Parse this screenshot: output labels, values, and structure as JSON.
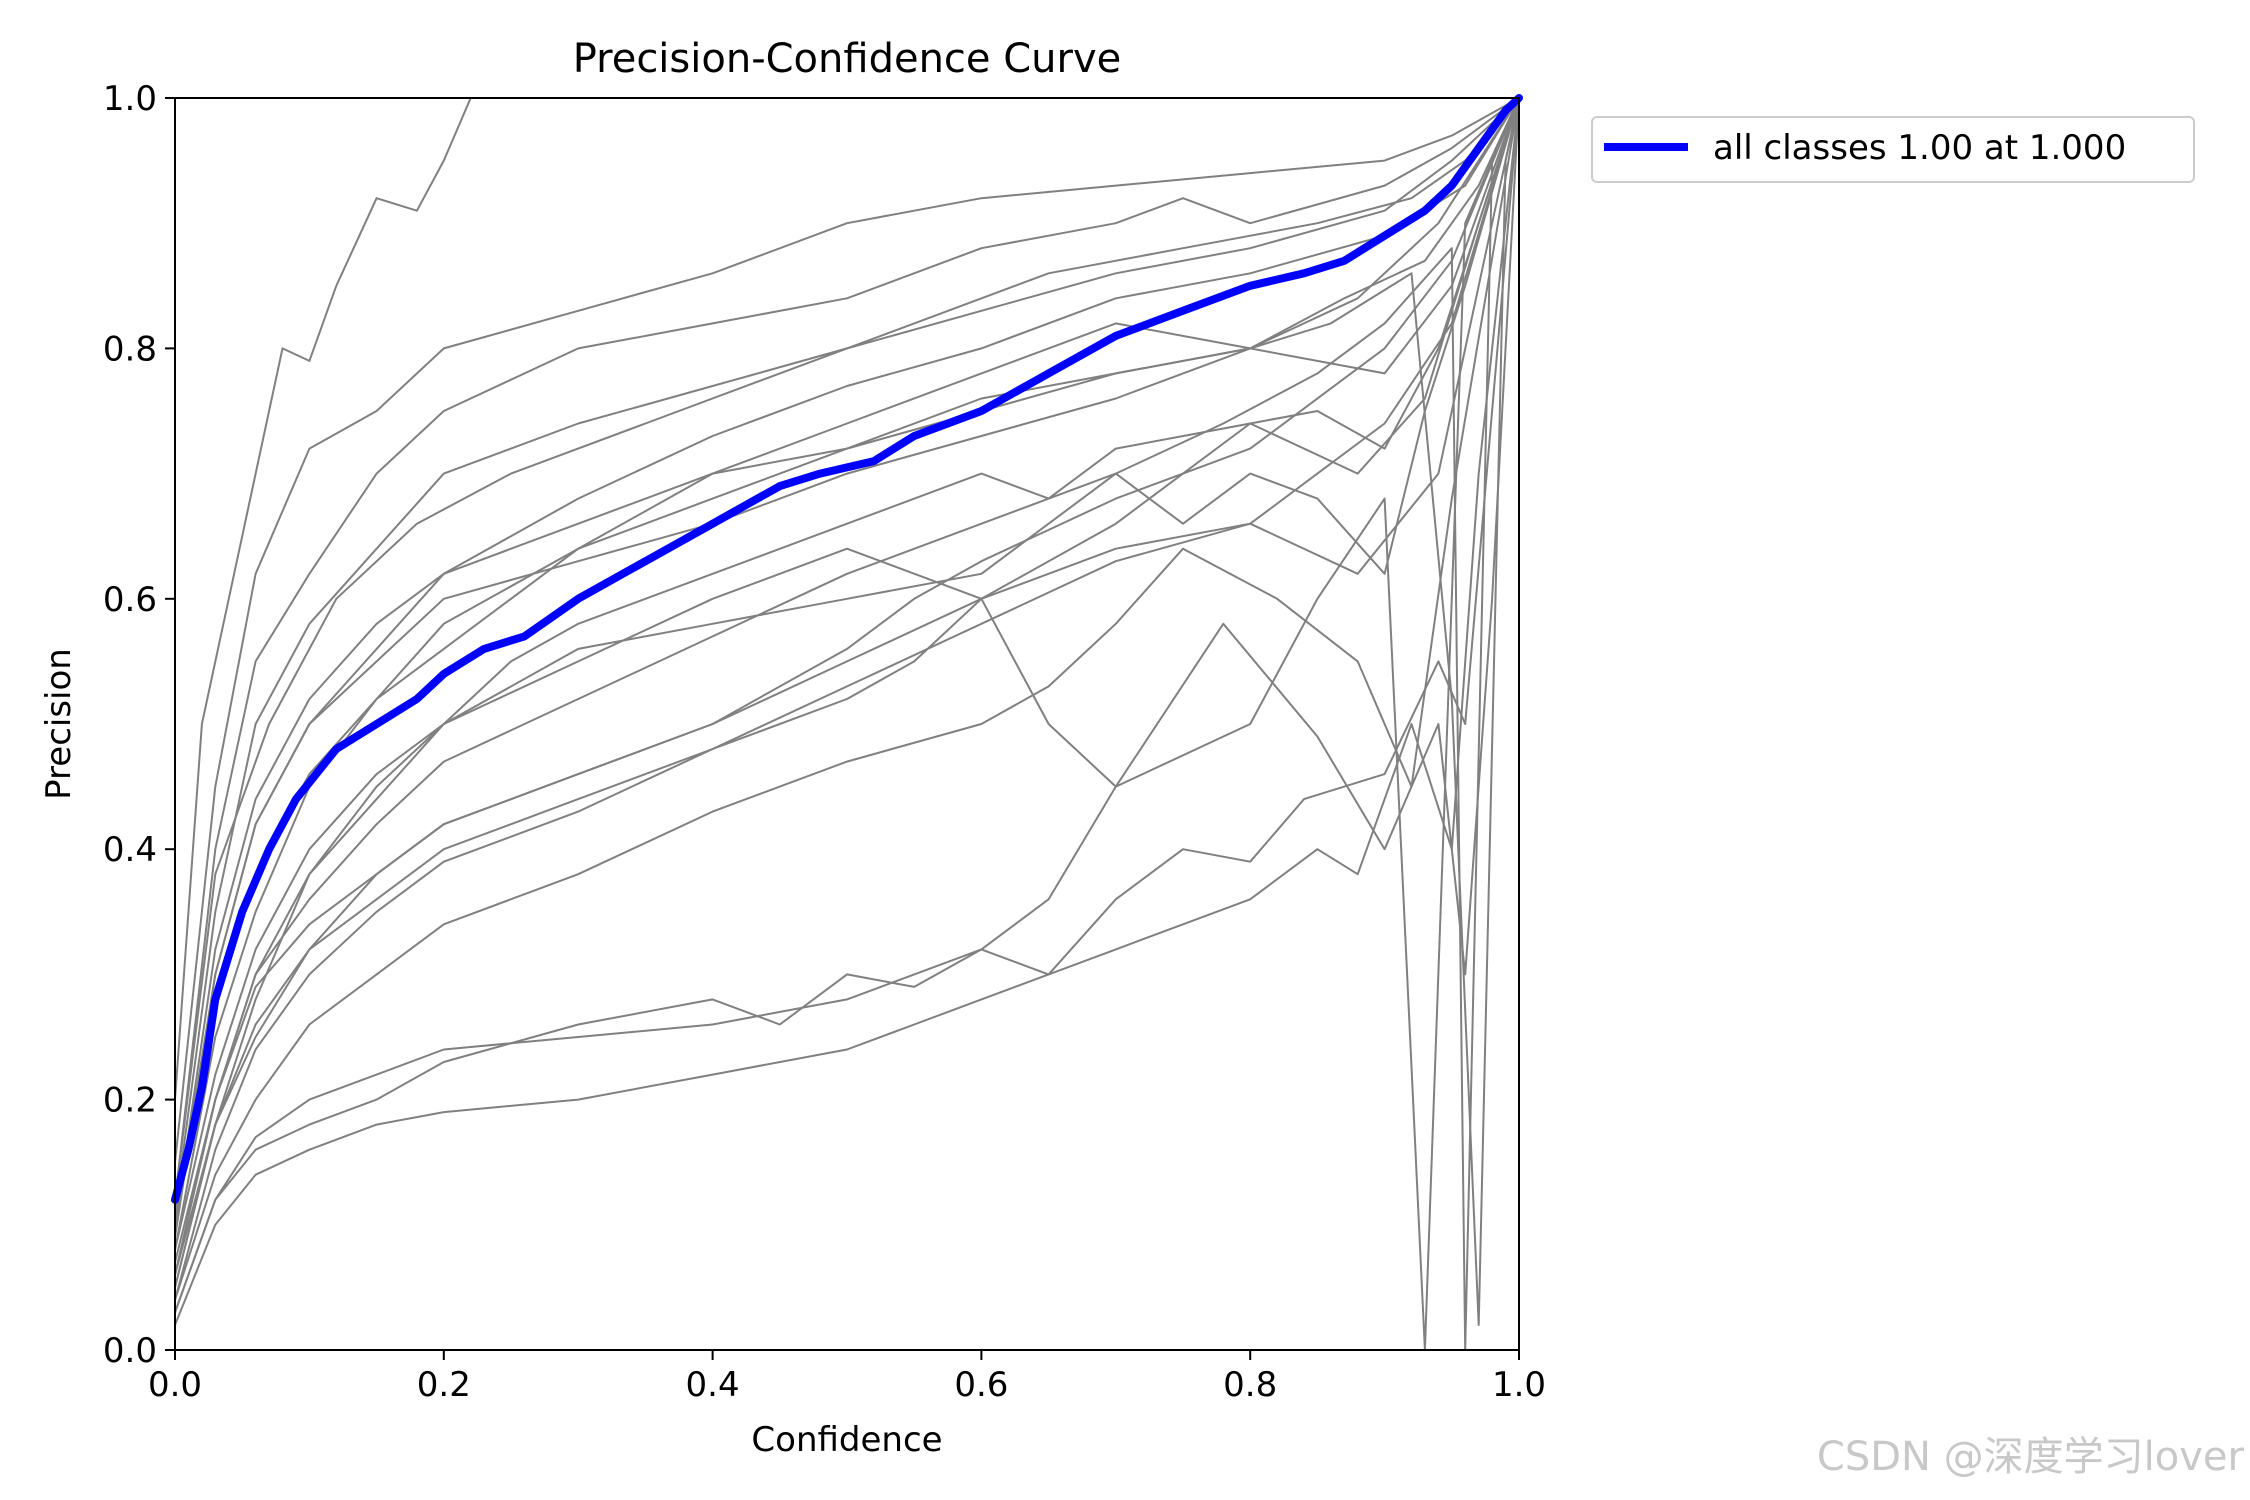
{
  "chart_data": {
    "type": "line",
    "title": "Precision-Confidence Curve",
    "xlabel": "Confidence",
    "ylabel": "Precision",
    "xlim": [
      0.0,
      1.0
    ],
    "ylim": [
      0.0,
      1.0
    ],
    "xticks": [
      "0.0",
      "0.2",
      "0.4",
      "0.6",
      "0.8",
      "1.0"
    ],
    "yticks": [
      "0.0",
      "0.2",
      "0.4",
      "0.6",
      "0.8",
      "1.0"
    ],
    "grid": false,
    "legend_position": "outside-top-right",
    "colors": {
      "class_lines": "#808080",
      "all_classes": "#0000ff"
    },
    "series": [
      {
        "name": "all classes 1.00 at 1.000",
        "x": [
          0.0,
          0.01,
          0.02,
          0.03,
          0.05,
          0.07,
          0.09,
          0.12,
          0.15,
          0.18,
          0.2,
          0.23,
          0.26,
          0.3,
          0.35,
          0.4,
          0.45,
          0.48,
          0.52,
          0.55,
          0.6,
          0.65,
          0.7,
          0.75,
          0.8,
          0.84,
          0.87,
          0.9,
          0.93,
          0.95,
          0.97,
          0.99,
          1.0
        ],
        "y": [
          0.12,
          0.16,
          0.21,
          0.28,
          0.35,
          0.4,
          0.44,
          0.48,
          0.5,
          0.52,
          0.54,
          0.56,
          0.57,
          0.6,
          0.63,
          0.66,
          0.69,
          0.7,
          0.71,
          0.73,
          0.75,
          0.78,
          0.81,
          0.83,
          0.85,
          0.86,
          0.87,
          0.89,
          0.91,
          0.93,
          0.96,
          0.99,
          1.0
        ]
      }
    ],
    "class_series": [
      {
        "x": [
          0.0,
          0.02,
          0.05,
          0.08,
          0.1,
          0.12,
          0.15,
          0.18,
          0.2,
          0.22
        ],
        "y": [
          0.2,
          0.5,
          0.65,
          0.8,
          0.79,
          0.85,
          0.92,
          0.91,
          0.95,
          1.0
        ]
      },
      {
        "x": [
          0.0,
          0.03,
          0.06,
          0.1,
          0.15,
          0.2,
          0.3,
          0.4,
          0.5,
          0.6,
          0.7,
          0.8,
          0.9,
          0.95,
          1.0
        ],
        "y": [
          0.15,
          0.45,
          0.62,
          0.72,
          0.75,
          0.8,
          0.83,
          0.86,
          0.9,
          0.92,
          0.93,
          0.94,
          0.95,
          0.97,
          1.0
        ]
      },
      {
        "x": [
          0.0,
          0.03,
          0.07,
          0.12,
          0.18,
          0.25,
          0.35,
          0.45,
          0.55,
          0.65,
          0.75,
          0.85,
          0.92,
          0.96,
          1.0
        ],
        "y": [
          0.12,
          0.38,
          0.5,
          0.6,
          0.66,
          0.7,
          0.74,
          0.78,
          0.82,
          0.86,
          0.88,
          0.9,
          0.92,
          0.95,
          1.0
        ]
      },
      {
        "x": [
          0.0,
          0.03,
          0.06,
          0.1,
          0.15,
          0.2,
          0.3,
          0.4,
          0.5,
          0.6,
          0.7,
          0.8,
          0.9,
          0.96,
          1.0
        ],
        "y": [
          0.1,
          0.3,
          0.42,
          0.5,
          0.56,
          0.62,
          0.68,
          0.73,
          0.77,
          0.8,
          0.84,
          0.86,
          0.89,
          0.93,
          1.0
        ]
      },
      {
        "x": [
          0.0,
          0.03,
          0.06,
          0.1,
          0.15,
          0.2,
          0.3,
          0.4,
          0.5,
          0.6,
          0.7,
          0.8,
          0.88,
          0.94,
          1.0
        ],
        "y": [
          0.08,
          0.25,
          0.35,
          0.45,
          0.52,
          0.58,
          0.64,
          0.7,
          0.74,
          0.78,
          0.82,
          0.8,
          0.84,
          0.9,
          1.0
        ]
      },
      {
        "x": [
          0.0,
          0.03,
          0.06,
          0.1,
          0.15,
          0.2,
          0.25,
          0.3,
          0.4,
          0.5,
          0.6,
          0.7,
          0.8,
          0.9,
          0.95,
          1.0
        ],
        "y": [
          0.1,
          0.28,
          0.38,
          0.46,
          0.52,
          0.56,
          0.6,
          0.64,
          0.68,
          0.72,
          0.75,
          0.78,
          0.8,
          0.78,
          0.85,
          1.0
        ]
      },
      {
        "x": [
          0.0,
          0.03,
          0.06,
          0.1,
          0.15,
          0.2,
          0.25,
          0.3,
          0.4,
          0.5,
          0.6,
          0.65,
          0.7,
          0.8,
          0.88,
          0.93,
          0.97,
          1.0
        ],
        "y": [
          0.06,
          0.2,
          0.3,
          0.38,
          0.44,
          0.5,
          0.55,
          0.58,
          0.62,
          0.66,
          0.7,
          0.68,
          0.72,
          0.74,
          0.7,
          0.76,
          0.9,
          1.0
        ]
      },
      {
        "x": [
          0.0,
          0.03,
          0.06,
          0.1,
          0.15,
          0.2,
          0.3,
          0.4,
          0.5,
          0.6,
          0.7,
          0.75,
          0.8,
          0.85,
          0.9,
          0.94,
          1.0
        ],
        "y": [
          0.05,
          0.18,
          0.26,
          0.32,
          0.38,
          0.42,
          0.46,
          0.5,
          0.55,
          0.6,
          0.66,
          0.7,
          0.74,
          0.75,
          0.72,
          0.8,
          1.0
        ]
      },
      {
        "x": [
          0.0,
          0.03,
          0.06,
          0.1,
          0.15,
          0.2,
          0.3,
          0.4,
          0.5,
          0.55,
          0.6,
          0.7,
          0.8,
          0.88,
          0.94,
          1.0
        ],
        "y": [
          0.04,
          0.16,
          0.24,
          0.3,
          0.35,
          0.39,
          0.43,
          0.48,
          0.52,
          0.55,
          0.6,
          0.64,
          0.66,
          0.62,
          0.7,
          1.0
        ]
      },
      {
        "x": [
          0.0,
          0.03,
          0.06,
          0.1,
          0.15,
          0.2,
          0.3,
          0.4,
          0.5,
          0.6,
          0.65,
          0.7,
          0.75,
          0.82,
          0.88,
          0.92,
          0.95,
          1.0
        ],
        "y": [
          0.04,
          0.14,
          0.2,
          0.26,
          0.3,
          0.34,
          0.38,
          0.43,
          0.47,
          0.5,
          0.53,
          0.58,
          0.64,
          0.6,
          0.55,
          0.45,
          0.68,
          1.0
        ]
      },
      {
        "x": [
          0.0,
          0.03,
          0.06,
          0.1,
          0.15,
          0.2,
          0.3,
          0.4,
          0.5,
          0.6,
          0.65,
          0.7,
          0.78,
          0.85,
          0.9,
          0.94,
          0.96,
          0.98,
          1.0
        ],
        "y": [
          0.03,
          0.12,
          0.17,
          0.2,
          0.22,
          0.24,
          0.25,
          0.26,
          0.28,
          0.32,
          0.36,
          0.45,
          0.58,
          0.49,
          0.4,
          0.5,
          0.3,
          0.6,
          1.0
        ]
      },
      {
        "x": [
          0.0,
          0.03,
          0.06,
          0.1,
          0.15,
          0.2,
          0.3,
          0.4,
          0.5,
          0.55,
          0.6,
          0.65,
          0.7,
          0.75,
          0.8,
          0.85,
          0.88,
          0.92,
          0.95,
          0.97,
          1.0
        ],
        "y": [
          0.02,
          0.1,
          0.14,
          0.16,
          0.18,
          0.19,
          0.2,
          0.22,
          0.24,
          0.26,
          0.28,
          0.3,
          0.32,
          0.34,
          0.36,
          0.4,
          0.38,
          0.5,
          0.4,
          0.7,
          1.0
        ]
      },
      {
        "x": [
          0.0,
          0.03,
          0.06,
          0.1,
          0.15,
          0.2,
          0.3,
          0.4,
          0.45,
          0.5,
          0.55,
          0.6,
          0.65,
          0.7,
          0.75,
          0.8,
          0.84,
          0.9,
          0.94,
          0.96,
          1.0
        ],
        "y": [
          0.03,
          0.12,
          0.16,
          0.18,
          0.2,
          0.23,
          0.26,
          0.28,
          0.26,
          0.3,
          0.29,
          0.32,
          0.3,
          0.36,
          0.4,
          0.39,
          0.44,
          0.46,
          0.55,
          0.5,
          1.0
        ]
      },
      {
        "x": [
          0.0,
          0.03,
          0.06,
          0.1,
          0.15,
          0.2,
          0.3,
          0.4,
          0.5,
          0.6,
          0.7,
          0.75,
          0.8,
          0.85,
          0.9,
          0.93,
          0.96,
          1.0
        ],
        "y": [
          0.06,
          0.18,
          0.28,
          0.38,
          0.45,
          0.5,
          0.56,
          0.58,
          0.6,
          0.62,
          0.7,
          0.66,
          0.7,
          0.68,
          0.62,
          0.75,
          0.85,
          1.0
        ]
      },
      {
        "x": [
          0.0,
          0.03,
          0.06,
          0.1,
          0.15,
          0.2,
          0.3,
          0.4,
          0.5,
          0.6,
          0.65,
          0.7,
          0.8,
          0.85,
          0.9,
          0.93,
          0.96,
          1.0
        ],
        "y": [
          0.08,
          0.22,
          0.32,
          0.4,
          0.46,
          0.5,
          0.55,
          0.6,
          0.64,
          0.6,
          0.5,
          0.45,
          0.5,
          0.6,
          0.68,
          0.0,
          0.9,
          1.0
        ]
      },
      {
        "x": [
          0.0,
          0.03,
          0.06,
          0.1,
          0.15,
          0.2,
          0.3,
          0.4,
          0.5,
          0.6,
          0.7,
          0.78,
          0.85,
          0.9,
          0.95,
          0.96,
          0.98,
          1.0
        ],
        "y": [
          0.07,
          0.2,
          0.3,
          0.36,
          0.42,
          0.47,
          0.52,
          0.57,
          0.62,
          0.66,
          0.7,
          0.74,
          0.78,
          0.82,
          0.88,
          0.0,
          0.95,
          1.0
        ]
      },
      {
        "x": [
          0.0,
          0.03,
          0.06,
          0.1,
          0.15,
          0.2,
          0.3,
          0.4,
          0.5,
          0.6,
          0.7,
          0.8,
          0.86,
          0.92,
          0.95,
          0.97,
          0.99,
          1.0
        ],
        "y": [
          0.1,
          0.32,
          0.44,
          0.52,
          0.58,
          0.62,
          0.66,
          0.7,
          0.72,
          0.76,
          0.78,
          0.8,
          0.82,
          0.86,
          0.52,
          0.02,
          0.95,
          1.0
        ]
      },
      {
        "x": [
          0.0,
          0.03,
          0.06,
          0.1,
          0.15,
          0.2,
          0.3,
          0.4,
          0.5,
          0.6,
          0.7,
          0.8,
          0.87,
          0.93,
          0.97,
          1.0
        ],
        "y": [
          0.09,
          0.3,
          0.42,
          0.5,
          0.55,
          0.6,
          0.63,
          0.66,
          0.7,
          0.73,
          0.76,
          0.8,
          0.84,
          0.87,
          0.93,
          1.0
        ]
      },
      {
        "x": [
          0.0,
          0.03,
          0.06,
          0.1,
          0.15,
          0.2,
          0.3,
          0.4,
          0.5,
          0.55,
          0.6,
          0.7,
          0.8,
          0.9,
          0.95,
          1.0
        ],
        "y": [
          0.06,
          0.2,
          0.29,
          0.34,
          0.38,
          0.42,
          0.46,
          0.5,
          0.56,
          0.6,
          0.63,
          0.68,
          0.72,
          0.8,
          0.87,
          1.0
        ]
      },
      {
        "x": [
          0.0,
          0.03,
          0.06,
          0.1,
          0.15,
          0.2,
          0.3,
          0.4,
          0.5,
          0.6,
          0.7,
          0.8,
          0.85,
          0.9,
          0.95,
          1.0
        ],
        "y": [
          0.05,
          0.18,
          0.25,
          0.32,
          0.36,
          0.4,
          0.44,
          0.48,
          0.53,
          0.58,
          0.63,
          0.66,
          0.7,
          0.74,
          0.82,
          1.0
        ]
      },
      {
        "x": [
          0.0,
          0.03,
          0.06,
          0.1,
          0.15,
          0.2,
          0.3,
          0.4,
          0.5,
          0.6,
          0.7,
          0.75,
          0.8,
          0.9,
          0.95,
          1.0
        ],
        "y": [
          0.12,
          0.4,
          0.55,
          0.62,
          0.7,
          0.75,
          0.8,
          0.82,
          0.84,
          0.88,
          0.9,
          0.92,
          0.9,
          0.93,
          0.96,
          1.0
        ]
      },
      {
        "x": [
          0.0,
          0.03,
          0.06,
          0.1,
          0.15,
          0.2,
          0.3,
          0.4,
          0.5,
          0.6,
          0.7,
          0.8,
          0.9,
          0.95,
          1.0
        ],
        "y": [
          0.11,
          0.35,
          0.5,
          0.58,
          0.64,
          0.7,
          0.74,
          0.77,
          0.8,
          0.83,
          0.86,
          0.88,
          0.91,
          0.95,
          1.0
        ]
      }
    ]
  },
  "watermark": "CSDN @深度学习lover"
}
